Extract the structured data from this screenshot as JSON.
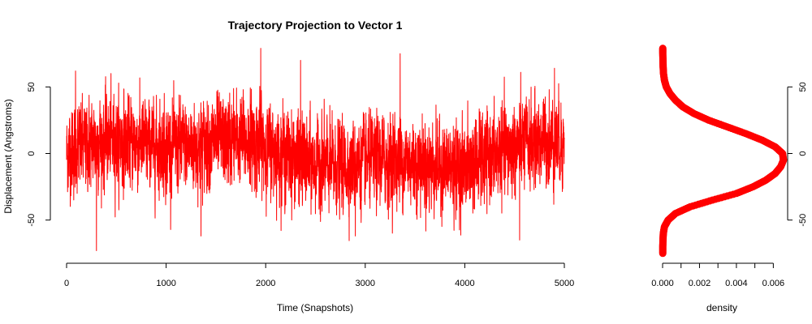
{
  "colors": {
    "series": "#ff0000",
    "axis": "#000000",
    "background": "#ffffff"
  },
  "chart_data": [
    {
      "type": "line",
      "title": "Trajectory Projection to Vector 1",
      "xlabel": "Time (Snapshots)",
      "ylabel": "Displacement (Angstroms)",
      "xlim": [
        0,
        5000
      ],
      "ylim": [
        -80,
        80
      ],
      "x_ticks": [
        0,
        1000,
        2000,
        3000,
        4000,
        5000
      ],
      "x_tick_labels": [
        "0",
        "1000",
        "2000",
        "3000",
        "4000",
        "5000"
      ],
      "y_ticks": [
        -50,
        0,
        50
      ],
      "y_tick_labels": [
        "-50",
        "0",
        "50"
      ],
      "grid": false,
      "legend": "none",
      "series": [
        {
          "color": "#ff0000",
          "n_points": 5000,
          "x_range": [
            0,
            5000
          ],
          "y_min": -73,
          "y_max": 79,
          "approx_mean": 0,
          "approx_sd": 18,
          "local_extremes": [
            {
              "x": 90,
              "y": 62
            },
            {
              "x": 300,
              "y": -73
            },
            {
              "x": 1350,
              "y": -62
            },
            {
              "x": 1950,
              "y": 79
            },
            {
              "x": 2350,
              "y": 70
            },
            {
              "x": 2900,
              "y": -62
            },
            {
              "x": 3350,
              "y": 75
            },
            {
              "x": 4550,
              "y": -65
            },
            {
              "x": 4900,
              "y": 64
            }
          ]
        }
      ]
    },
    {
      "type": "line",
      "xlabel": "density",
      "ylabel": "",
      "orientation": "horizontal",
      "xlim": [
        0,
        0.0066
      ],
      "ylim": [
        -80,
        80
      ],
      "x_ticks": [
        0,
        0.001,
        0.002,
        0.003,
        0.004,
        0.005,
        0.006
      ],
      "x_tick_labels": [
        "0.000",
        "",
        "0.002",
        "",
        "0.004",
        "",
        "0.006"
      ],
      "y_ticks": [
        -50,
        0,
        50
      ],
      "y_tick_labels": [
        "-50",
        "0",
        "50"
      ],
      "y_axis_side": "right",
      "grid": false,
      "series": [
        {
          "color": "#ff0000",
          "displacement": [
            -75,
            -70,
            -65,
            -60,
            -55,
            -50,
            -45,
            -40,
            -35,
            -30,
            -25,
            -20,
            -15,
            -10,
            -5,
            0,
            5,
            10,
            15,
            20,
            25,
            30,
            35,
            40,
            45,
            50,
            55,
            60,
            65,
            70,
            75,
            79
          ],
          "density": [
            1e-05,
            1e-05,
            2e-05,
            4e-05,
            0.0001,
            0.0003,
            0.0007,
            0.0015,
            0.0027,
            0.004,
            0.0049,
            0.0056,
            0.0061,
            0.0064,
            0.00655,
            0.0065,
            0.0061,
            0.0054,
            0.0045,
            0.0035,
            0.0025,
            0.0017,
            0.0011,
            0.0007,
            0.0004,
            0.0002,
            0.0001,
            5e-05,
            3e-05,
            2e-05,
            1e-05,
            1e-05
          ]
        }
      ]
    }
  ]
}
